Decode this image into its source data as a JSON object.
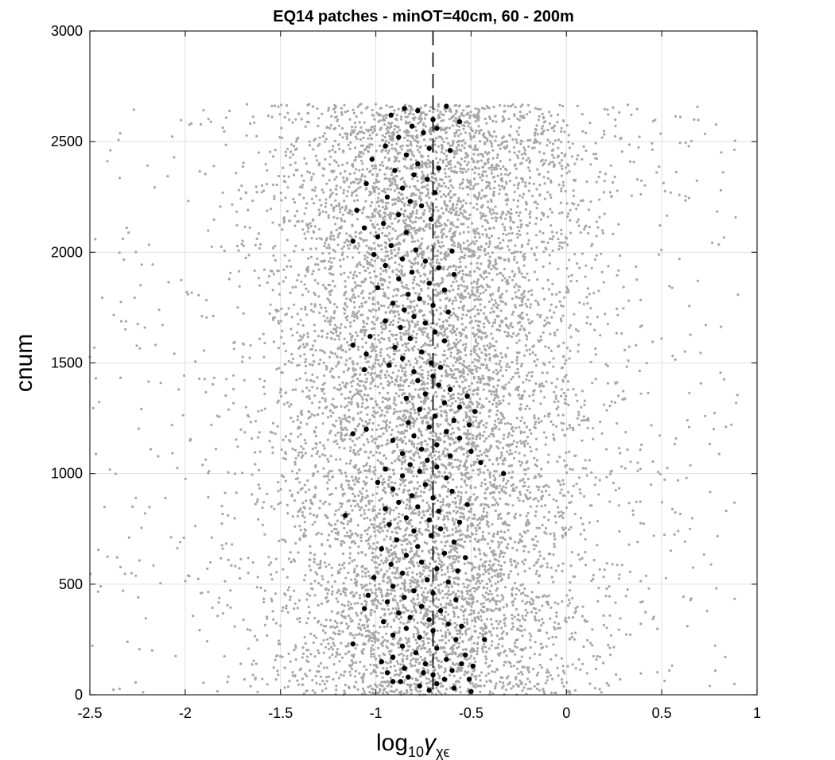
{
  "chart_data": {
    "type": "scatter",
    "title": "EQ14 patches - minOT=40cm, 60 - 200m",
    "xlabel": "log",
    "xlabel_sub": "10",
    "xlabel_symbol": "γ",
    "xlabel_symbol_sub": "χϵ",
    "ylabel": "cnum",
    "xlim": [
      -2.5,
      1
    ],
    "ylim": [
      0,
      3000
    ],
    "xticks": [
      -2.5,
      -2,
      -1.5,
      -1,
      -0.5,
      0,
      0.5,
      1
    ],
    "xtick_labels": [
      "-2.5",
      "-2",
      "-1.5",
      "-1",
      "-0.5",
      "0",
      "0.5",
      "1"
    ],
    "yticks": [
      0,
      500,
      1000,
      1500,
      2000,
      2500,
      3000
    ],
    "ytick_labels": [
      "0",
      "500",
      "1000",
      "1500",
      "2000",
      "2500",
      "3000"
    ],
    "grid": true,
    "reference_line": {
      "x": -0.7,
      "style": "dashed",
      "color": "#000000"
    },
    "series": [
      {
        "role": "all-points",
        "color": "#a6a6a6",
        "marker_size": 1.6,
        "distribution": {
          "x_center": -0.72,
          "x_spread": 0.42,
          "y_min": 0,
          "y_max": 2670,
          "count": 9000
        }
      },
      {
        "role": "patch-points",
        "color": "#000000",
        "marker_size": 3.2,
        "points": [
          [
            -0.85,
            2650
          ],
          [
            -0.63,
            2660
          ],
          [
            -0.78,
            2640
          ],
          [
            -0.92,
            2620
          ],
          [
            -0.7,
            2600
          ],
          [
            -0.56,
            2590
          ],
          [
            -0.81,
            2570
          ],
          [
            -0.68,
            2560
          ],
          [
            -0.75,
            2540
          ],
          [
            -0.88,
            2520
          ],
          [
            -0.95,
            2480
          ],
          [
            -0.72,
            2470
          ],
          [
            -0.61,
            2460
          ],
          [
            -0.84,
            2440
          ],
          [
            -1.02,
            2420
          ],
          [
            -0.78,
            2400
          ],
          [
            -0.67,
            2380
          ],
          [
            -0.9,
            2370
          ],
          [
            -0.8,
            2350
          ],
          [
            -0.73,
            2330
          ],
          [
            -1.05,
            2310
          ],
          [
            -0.86,
            2290
          ],
          [
            -0.69,
            2270
          ],
          [
            -0.94,
            2250
          ],
          [
            -0.82,
            2230
          ],
          [
            -0.76,
            2210
          ],
          [
            -1.1,
            2190
          ],
          [
            -0.88,
            2170
          ],
          [
            -0.71,
            2150
          ],
          [
            -0.96,
            2130
          ],
          [
            -1.06,
            2110
          ],
          [
            -0.84,
            2090
          ],
          [
            -0.99,
            2070
          ],
          [
            -1.12,
            2050
          ],
          [
            -0.92,
            2030
          ],
          [
            -0.79,
            2010
          ],
          [
            -0.6,
            2005
          ],
          [
            -1.01,
            1990
          ],
          [
            -0.86,
            1970
          ],
          [
            -0.74,
            1960
          ],
          [
            -0.95,
            1940
          ],
          [
            -0.67,
            1930
          ],
          [
            -0.81,
            1910
          ],
          [
            -0.59,
            1900
          ],
          [
            -0.88,
            1880
          ],
          [
            -0.72,
            1860
          ],
          [
            -0.99,
            1840
          ],
          [
            -0.64,
            1830
          ],
          [
            -0.83,
            1810
          ],
          [
            -0.77,
            1790
          ],
          [
            -0.91,
            1770
          ],
          [
            -0.7,
            1760
          ],
          [
            -0.85,
            1740
          ],
          [
            -0.62,
            1730
          ],
          [
            -0.8,
            1710
          ],
          [
            -0.95,
            1690
          ],
          [
            -0.74,
            1680
          ],
          [
            -0.87,
            1660
          ],
          [
            -0.69,
            1640
          ],
          [
            -1.03,
            1620
          ],
          [
            -0.82,
            1610
          ],
          [
            -0.64,
            1600
          ],
          [
            -1.12,
            1580
          ],
          [
            -0.9,
            1570
          ],
          [
            -0.76,
            1550
          ],
          [
            -1.05,
            1540
          ],
          [
            -0.86,
            1520
          ],
          [
            -0.71,
            1500
          ],
          [
            -0.93,
            1490
          ],
          [
            -0.66,
            1480
          ],
          [
            -1.06,
            1470
          ],
          [
            -0.8,
            1460
          ],
          [
            -0.7,
            1440
          ],
          [
            -0.78,
            1420
          ],
          [
            -0.67,
            1400
          ],
          [
            -0.61,
            1380
          ],
          [
            -0.74,
            1360
          ],
          [
            -0.52,
            1350
          ],
          [
            -0.84,
            1340
          ],
          [
            -0.64,
            1320
          ],
          [
            -0.56,
            1300
          ],
          [
            -0.77,
            1290
          ],
          [
            -0.48,
            1280
          ],
          [
            -0.69,
            1260
          ],
          [
            -0.59,
            1240
          ],
          [
            -0.83,
            1230
          ],
          [
            -0.51,
            1220
          ],
          [
            -0.72,
            1210
          ],
          [
            -0.63,
            1190
          ],
          [
            -1.05,
            1200
          ],
          [
            -1.12,
            1180
          ],
          [
            -0.8,
            1170
          ],
          [
            -0.56,
            1160
          ],
          [
            -0.91,
            1150
          ],
          [
            -0.68,
            1130
          ],
          [
            -0.76,
            1110
          ],
          [
            -0.5,
            1100
          ],
          [
            -0.86,
            1090
          ],
          [
            -0.61,
            1080
          ],
          [
            -0.73,
            1060
          ],
          [
            -0.45,
            1050
          ],
          [
            -0.82,
            1040
          ],
          [
            -0.68,
            1030
          ],
          [
            -0.95,
            1020
          ],
          [
            -0.77,
            1010
          ],
          [
            -0.33,
            1000
          ],
          [
            -0.86,
            990
          ],
          [
            -0.63,
            980
          ],
          [
            -0.99,
            960
          ],
          [
            -0.74,
            950
          ],
          [
            -0.91,
            930
          ],
          [
            -0.6,
            920
          ],
          [
            -0.81,
            900
          ],
          [
            -0.7,
            890
          ],
          [
            -0.88,
            870
          ],
          [
            -0.52,
            860
          ],
          [
            -0.78,
            850
          ],
          [
            -0.95,
            840
          ],
          [
            -0.67,
            830
          ],
          [
            -1.16,
            810
          ],
          [
            -0.84,
            800
          ],
          [
            -0.72,
            790
          ],
          [
            -0.56,
            780
          ],
          [
            -0.93,
            770
          ],
          [
            -0.66,
            750
          ],
          [
            -0.8,
            740
          ],
          [
            -0.71,
            720
          ],
          [
            -0.89,
            700
          ],
          [
            -0.59,
            690
          ],
          [
            -0.78,
            670
          ],
          [
            -0.97,
            660
          ],
          [
            -0.64,
            640
          ],
          [
            -0.84,
            630
          ],
          [
            -0.53,
            620
          ],
          [
            -0.76,
            600
          ],
          [
            -0.92,
            590
          ],
          [
            -0.68,
            570
          ],
          [
            -0.57,
            560
          ],
          [
            -0.86,
            550
          ],
          [
            -1.01,
            530
          ],
          [
            -0.73,
            520
          ],
          [
            -0.62,
            510
          ],
          [
            -0.91,
            490
          ],
          [
            -0.8,
            470
          ],
          [
            -0.7,
            460
          ],
          [
            -1.04,
            450
          ],
          [
            -0.85,
            440
          ],
          [
            -0.58,
            430
          ],
          [
            -0.94,
            420
          ],
          [
            -0.76,
            400
          ],
          [
            -1.06,
            390
          ],
          [
            -0.66,
            380
          ],
          [
            -0.88,
            370
          ],
          [
            -0.82,
            350
          ],
          [
            -0.72,
            340
          ],
          [
            -0.96,
            330
          ],
          [
            -0.62,
            320
          ],
          [
            -0.55,
            310
          ],
          [
            -0.84,
            300
          ],
          [
            -0.7,
            290
          ],
          [
            -0.91,
            270
          ],
          [
            -0.77,
            260
          ],
          [
            -0.58,
            250
          ],
          [
            -0.43,
            250
          ],
          [
            -1.12,
            230
          ],
          [
            -0.86,
            220
          ],
          [
            -0.68,
            210
          ],
          [
            -0.79,
            190
          ],
          [
            -0.53,
            180
          ],
          [
            -0.91,
            170
          ],
          [
            -0.63,
            160
          ],
          [
            -0.74,
            140
          ],
          [
            -0.49,
            130
          ],
          [
            -0.85,
            120
          ],
          [
            -0.6,
            110
          ],
          [
            -0.94,
            100
          ],
          [
            -0.7,
            90
          ],
          [
            -0.83,
            80
          ],
          [
            -0.51,
            70
          ],
          [
            -0.91,
            60
          ],
          [
            -0.68,
            50
          ],
          [
            -0.77,
            40
          ],
          [
            -0.59,
            30
          ],
          [
            -0.72,
            20
          ],
          [
            -0.5,
            15
          ],
          [
            -0.87,
            60
          ],
          [
            -0.64,
            70
          ],
          [
            -0.75,
            100
          ],
          [
            -0.55,
            140
          ],
          [
            -0.97,
            150
          ]
        ]
      }
    ]
  }
}
